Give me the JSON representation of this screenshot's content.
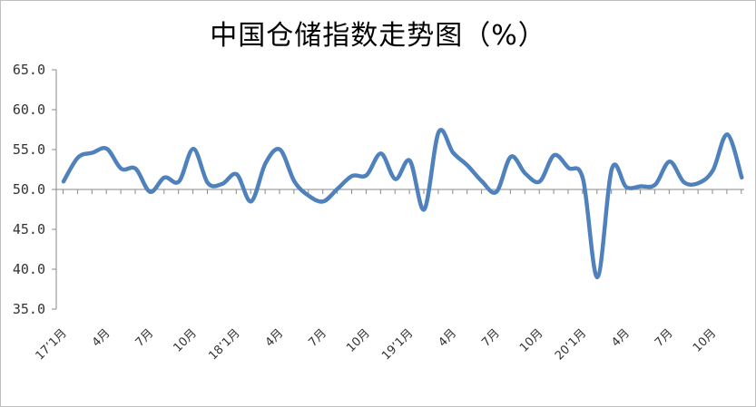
{
  "chart_data": {
    "type": "line",
    "title": "中国仓储指数走势图（%）",
    "ylim": [
      35.0,
      65.0
    ],
    "y_ticks": [
      "35.0",
      "40.0",
      "45.0",
      "50.0",
      "55.0",
      "60.0",
      "65.0"
    ],
    "x_tick_labels": [
      "17’1月",
      "4月",
      "7月",
      "10月",
      "18’1月",
      "4月",
      "7月",
      "10月",
      "19’1月",
      "4月",
      "7月",
      "10月",
      "20’1月",
      "4月",
      "7月",
      "10月"
    ],
    "x_tick_every": 3,
    "baseline": 50.0,
    "grid": false,
    "legend": "none",
    "series": [
      {
        "color": "#4f81bd",
        "values": [
          51.0,
          54.0,
          54.6,
          55.1,
          52.6,
          52.6,
          49.7,
          51.5,
          51.0,
          55.1,
          50.8,
          50.7,
          51.9,
          48.5,
          53.3,
          55.0,
          51.0,
          49.2,
          48.5,
          50.1,
          51.7,
          51.8,
          54.5,
          51.3,
          53.6,
          47.5,
          57.2,
          54.6,
          53.0,
          51.0,
          49.7,
          54.1,
          52.0,
          51.0,
          54.3,
          52.7,
          51.3,
          39.0,
          52.6,
          50.3,
          50.4,
          50.6,
          53.5,
          50.9,
          50.8,
          52.4,
          56.9,
          51.5
        ]
      }
    ]
  }
}
